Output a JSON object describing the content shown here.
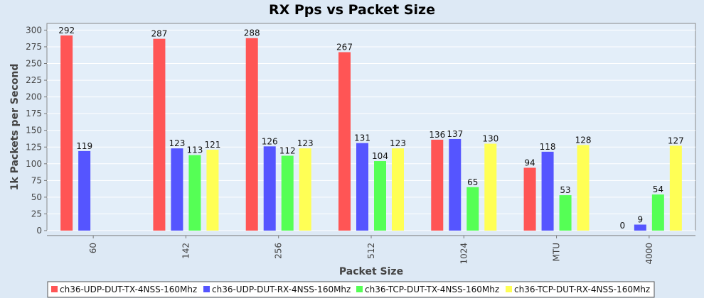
{
  "chart_data": {
    "type": "bar",
    "title": "RX Pps vs Packet Size",
    "xlabel": "Packet Size",
    "ylabel": "1k Packets per Second",
    "categories": [
      "60",
      "142",
      "256",
      "512",
      "1024",
      "MTU",
      "4000"
    ],
    "ylim": [
      0,
      310
    ],
    "yticks": [
      0,
      25,
      50,
      75,
      100,
      125,
      150,
      175,
      200,
      225,
      250,
      275,
      300
    ],
    "grid": true,
    "legend_position": "bottom",
    "series": [
      {
        "name": "ch36-UDP-DUT-TX-4NSS-160Mhz",
        "color": "#ff5555",
        "values": [
          292,
          287,
          288,
          267,
          136,
          94,
          0
        ]
      },
      {
        "name": "ch36-UDP-DUT-RX-4NSS-160Mhz",
        "color": "#5555ff",
        "values": [
          119,
          123,
          126,
          131,
          137,
          118,
          9
        ]
      },
      {
        "name": "ch36-TCP-DUT-TX-4NSS-160Mhz",
        "color": "#55ff55",
        "values": [
          null,
          113,
          112,
          104,
          65,
          53,
          54
        ]
      },
      {
        "name": "ch36-TCP-DUT-RX-4NSS-160Mhz",
        "color": "#ffff55",
        "values": [
          null,
          121,
          123,
          123,
          130,
          128,
          127
        ]
      }
    ]
  }
}
